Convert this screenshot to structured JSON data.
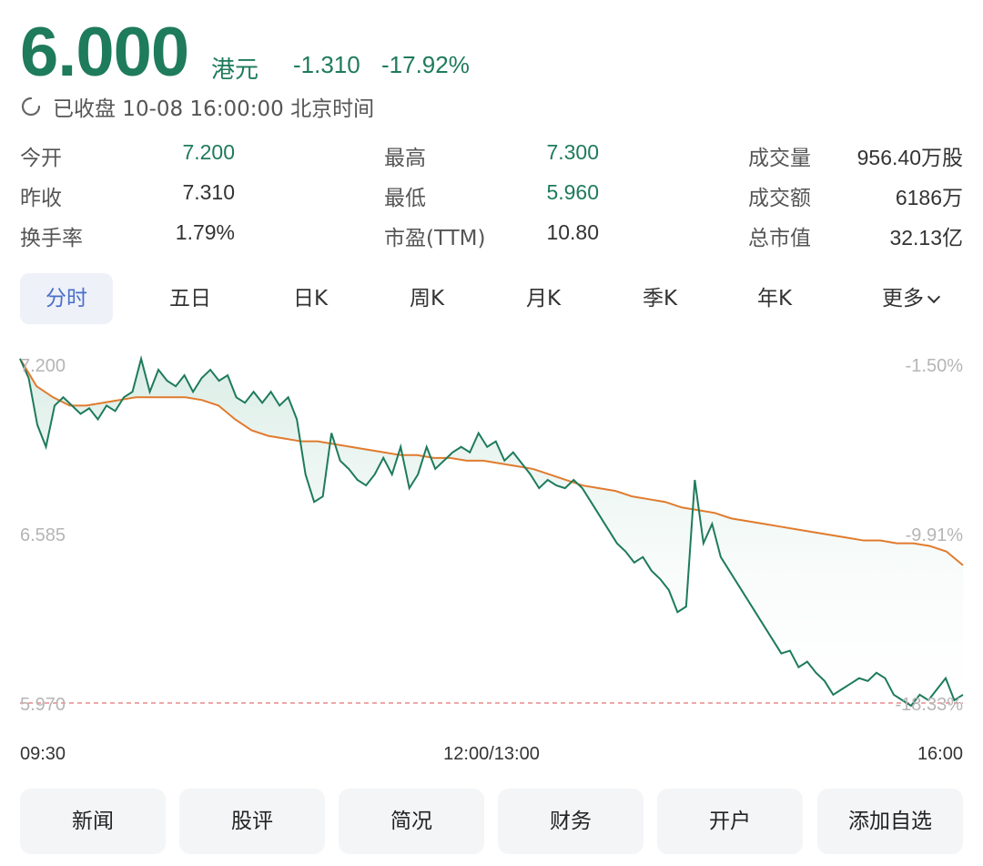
{
  "quote": {
    "price": "6.000",
    "unit": "港元",
    "change": "-1.310",
    "change_pct": "-17.92%"
  },
  "status": {
    "icon": "clock-icon",
    "text": "已收盘 10-08 16:00:00 北京时间"
  },
  "stats": {
    "open_label": "今开",
    "open_value": "7.200",
    "high_label": "最高",
    "high_value": "7.300",
    "volume_label": "成交量",
    "volume_value": "956.40万股",
    "prev_close_label": "昨收",
    "prev_close_value": "7.310",
    "low_label": "最低",
    "low_value": "5.960",
    "turnover_label": "成交额",
    "turnover_value": "6186万",
    "turnover_rate_label": "换手率",
    "turnover_rate_value": "1.79%",
    "pe_label": "市盈(TTM)",
    "pe_value": "10.80",
    "market_cap_label": "总市值",
    "market_cap_value": "32.13亿"
  },
  "tabs": [
    {
      "label": "分时",
      "active": true
    },
    {
      "label": "五日"
    },
    {
      "label": "日K"
    },
    {
      "label": "周K"
    },
    {
      "label": "月K"
    },
    {
      "label": "季K"
    },
    {
      "label": "年K"
    },
    {
      "label": "更多"
    }
  ],
  "chart_data": {
    "type": "line",
    "y_left_ticks": [
      "7.200",
      "6.585",
      "5.970"
    ],
    "y_right_ticks": [
      "-1.50%",
      "-9.91%",
      "-18.33%"
    ],
    "x_ticks": [
      "09:30",
      "12:00/13:00",
      "16:00"
    ],
    "ylim": [
      5.97,
      7.2
    ],
    "prev_close": 7.31,
    "colors": {
      "price": "#1e7b5b",
      "avg": "#e07b2e",
      "fill": "#e6f3ee",
      "ref": "#e88a8a"
    },
    "series": [
      {
        "values": [
          7.22,
          7.15,
          6.98,
          6.9,
          7.05,
          7.08,
          7.05,
          7.02,
          7.04,
          7.0,
          7.05,
          7.03,
          7.08,
          7.1,
          7.22,
          7.1,
          7.18,
          7.14,
          7.12,
          7.16,
          7.1,
          7.15,
          7.18,
          7.14,
          7.16,
          7.08,
          7.06,
          7.1,
          7.06,
          7.1,
          7.05,
          7.08,
          7.0,
          6.8,
          6.7,
          6.72,
          6.95,
          6.85,
          6.82,
          6.78,
          6.76,
          6.8,
          6.86,
          6.8,
          6.9,
          6.75,
          6.8,
          6.9,
          6.82,
          6.85,
          6.88,
          6.9,
          6.88,
          6.95,
          6.9,
          6.92,
          6.85,
          6.88,
          6.84,
          6.8,
          6.75,
          6.78,
          6.76,
          6.75,
          6.78,
          6.75,
          6.7,
          6.65,
          6.6,
          6.55,
          6.52,
          6.48,
          6.5,
          6.45,
          6.42,
          6.38,
          6.3,
          6.32,
          6.78,
          6.55,
          6.62,
          6.5,
          6.45,
          6.4,
          6.35,
          6.3,
          6.25,
          6.2,
          6.15,
          6.16,
          6.1,
          6.12,
          6.08,
          6.05,
          6.0,
          6.02,
          6.04,
          6.06,
          6.05,
          6.08,
          6.06,
          6.0,
          5.98,
          5.96,
          6.0,
          5.98,
          6.02,
          6.06,
          5.98,
          6.0
        ],
        "x_end_fraction": 1.0
      },
      {
        "values": [
          7.22,
          7.12,
          7.08,
          7.05,
          7.05,
          7.06,
          7.07,
          7.08,
          7.08,
          7.08,
          7.08,
          7.07,
          7.05,
          7.0,
          6.96,
          6.94,
          6.93,
          6.92,
          6.92,
          6.91,
          6.9,
          6.89,
          6.88,
          6.87,
          6.87,
          6.86,
          6.86,
          6.85,
          6.85,
          6.84,
          6.83,
          6.82,
          6.8,
          6.78,
          6.76,
          6.75,
          6.74,
          6.72,
          6.71,
          6.7,
          6.68,
          6.67,
          6.66,
          6.64,
          6.63,
          6.62,
          6.61,
          6.6,
          6.59,
          6.58,
          6.57,
          6.56,
          6.56,
          6.55,
          6.55,
          6.54,
          6.52,
          6.47
        ],
        "x_end_fraction": 1.0
      }
    ]
  },
  "actions": [
    {
      "label": "新闻"
    },
    {
      "label": "股评"
    },
    {
      "label": "简况"
    },
    {
      "label": "财务"
    },
    {
      "label": "开户"
    },
    {
      "label": "添加自选"
    }
  ]
}
